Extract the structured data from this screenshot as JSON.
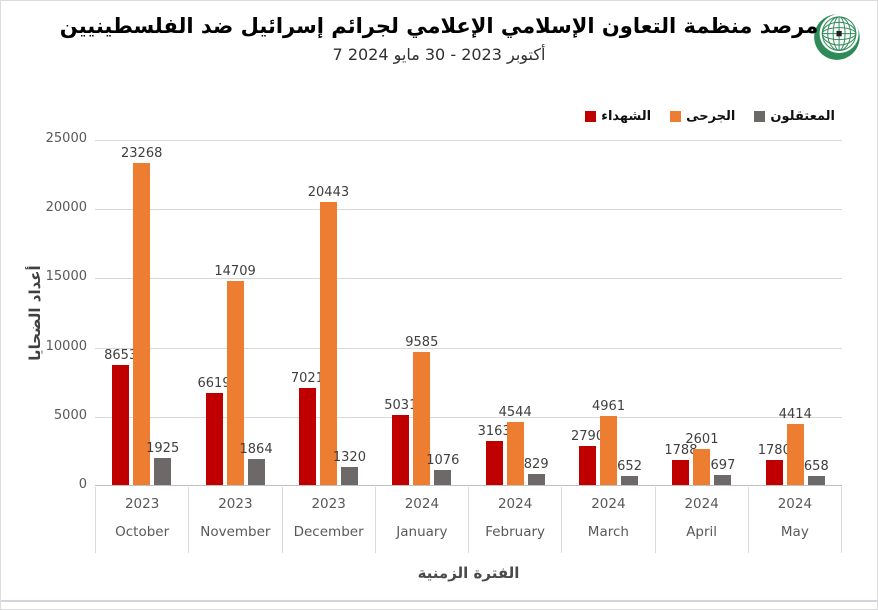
{
  "logo": {
    "name": "oic-emblem",
    "green": "#2E8B57",
    "kaaba": "#222222"
  },
  "colors": {
    "martyrs": "#C00000",
    "wounded": "#ED7D31",
    "detainees": "#6E6969",
    "gridline": "#D9D9D9",
    "axis_line": "#BFBFBF",
    "tick_text": "#595959",
    "label_text": "#3F3F3F"
  },
  "chart_data": {
    "type": "bar",
    "title": "مرصد منظمة التعاون الإسلامي الإعلامي لجرائم إسرائيل ضد الفلسطينيين",
    "subtitle": "7 أكتوبر 2023 - 30  مايو 2024",
    "xlabel": "الفترة الزمنية",
    "ylabel": "أعداد الضحايا",
    "ylim": [
      0,
      25000
    ],
    "yticks": [
      0,
      5000,
      10000,
      15000,
      20000,
      25000
    ],
    "grid": true,
    "legend_position": "top-right",
    "categories": [
      {
        "year": "2023",
        "month": "October"
      },
      {
        "year": "2023",
        "month": "November"
      },
      {
        "year": "2023",
        "month": "December"
      },
      {
        "year": "2024",
        "month": "January"
      },
      {
        "year": "2024",
        "month": "February"
      },
      {
        "year": "2024",
        "month": "March"
      },
      {
        "year": "2024",
        "month": "April"
      },
      {
        "year": "2024",
        "month": "May"
      }
    ],
    "series": [
      {
        "key": "martyrs",
        "name": "الشهداء",
        "color": "#C00000",
        "values": [
          8653,
          6619,
          7021,
          5031,
          3163,
          2790,
          1788,
          1780
        ]
      },
      {
        "key": "wounded",
        "name": "الجرحى",
        "color": "#ED7D31",
        "values": [
          23268,
          14709,
          20443,
          9585,
          4544,
          4961,
          2601,
          4414
        ]
      },
      {
        "key": "detainees",
        "name": "المعتقلون",
        "color": "#6E6969",
        "values": [
          1925,
          1864,
          1320,
          1076,
          829,
          652,
          697,
          658
        ]
      }
    ]
  }
}
